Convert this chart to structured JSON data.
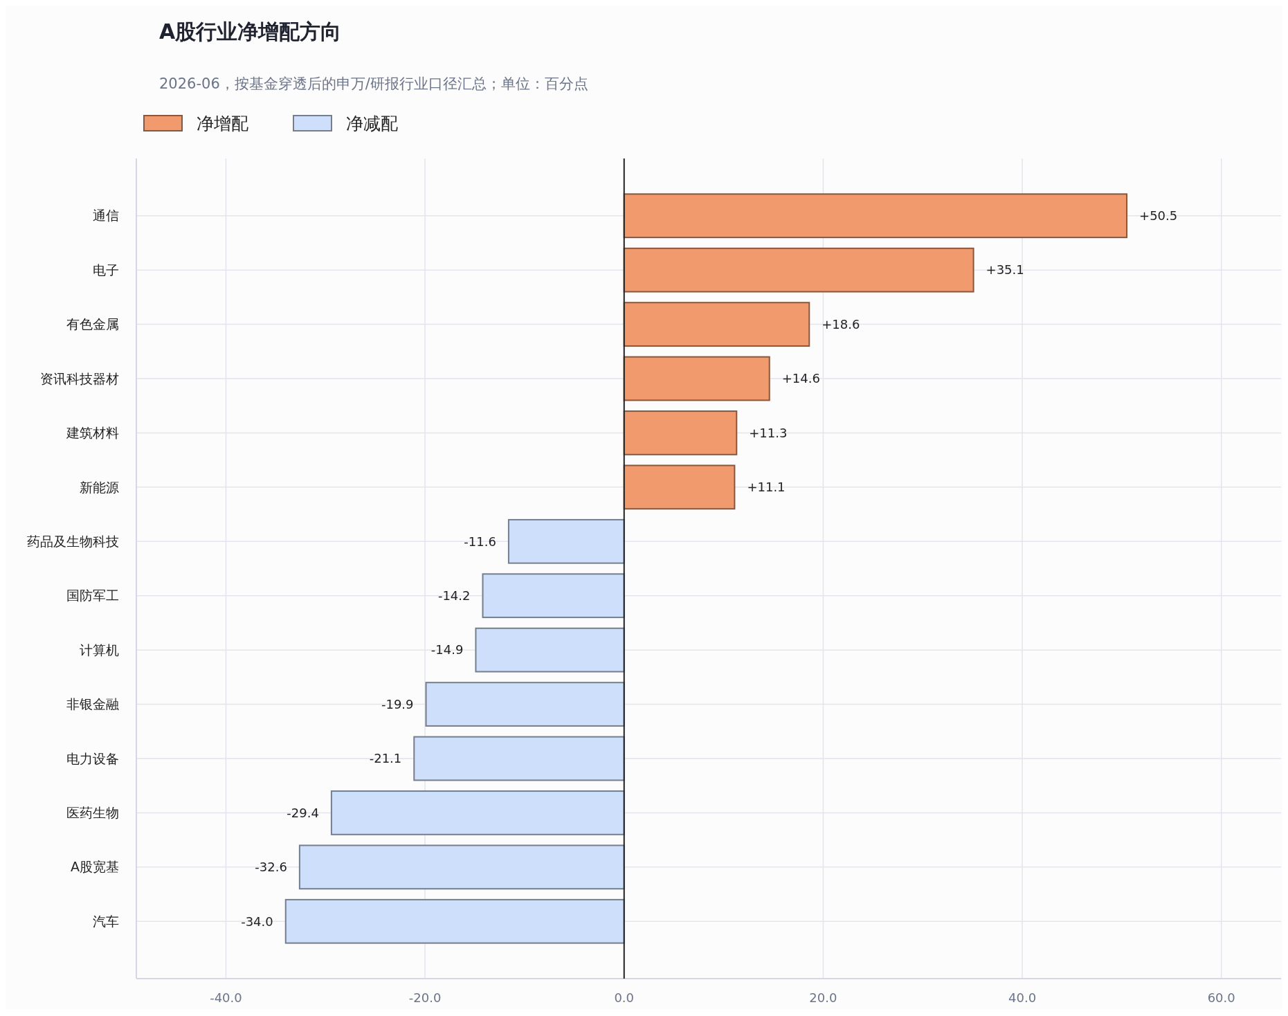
{
  "chart_data": {
    "type": "bar",
    "orientation": "horizontal",
    "title": "A股行业净增配方向",
    "subtitle": "2026-06，按基金穿透后的申万/研报行业口径汇总；单位：百分点",
    "categories": [
      "通信",
      "电子",
      "有色金属",
      "资讯科技器材",
      "建筑材料",
      "新能源",
      "药品及生物科技",
      "国防军工",
      "计算机",
      "非银金融",
      "电力设备",
      "医药生物",
      "A股宽基",
      "汽车"
    ],
    "series": [
      {
        "name": "净增配",
        "color": "#f09a6e",
        "values": [
          50.5,
          35.1,
          18.6,
          14.6,
          11.3,
          11.1,
          null,
          null,
          null,
          null,
          null,
          null,
          null,
          null
        ],
        "value_labels": [
          "+50.5",
          "+35.1",
          "+18.6",
          "+14.6",
          "+11.3",
          "+11.1",
          null,
          null,
          null,
          null,
          null,
          null,
          null,
          null
        ]
      },
      {
        "name": "净减配",
        "color": "#cddffa",
        "values": [
          null,
          null,
          null,
          null,
          null,
          null,
          -11.6,
          -14.2,
          -14.9,
          -19.9,
          -21.1,
          -29.4,
          -32.6,
          -34.0
        ],
        "value_labels": [
          null,
          null,
          null,
          null,
          null,
          null,
          "-11.6",
          "-14.2",
          "-14.9",
          "-19.9",
          "-21.1",
          "-29.4",
          "-32.6",
          "-34.0"
        ]
      }
    ],
    "xlim": [
      -49,
      66
    ],
    "xticks": [
      {
        "value": -40,
        "label": "-40.0"
      },
      {
        "value": -20,
        "label": "-20.0"
      },
      {
        "value": 0,
        "label": "0.0"
      },
      {
        "value": 20,
        "label": "20.0"
      },
      {
        "value": 40,
        "label": "40.0"
      },
      {
        "value": 60,
        "label": "60.0"
      }
    ],
    "ref_lines": [
      {
        "axis": "x",
        "value": 0,
        "color": "#222222"
      }
    ],
    "grid": true,
    "legend": "top left"
  }
}
